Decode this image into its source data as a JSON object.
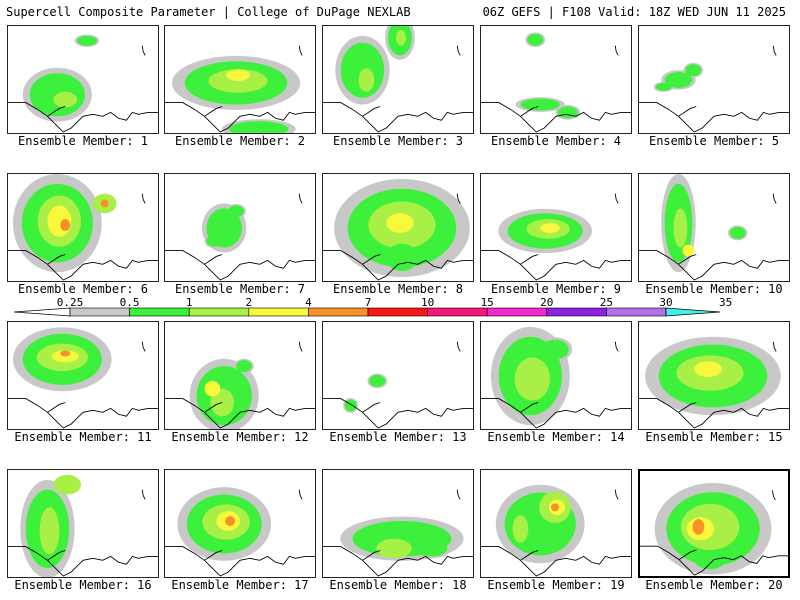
{
  "header": {
    "title": "Supercell Composite Parameter | College of DuPage NEXLAB",
    "run_info": "06Z GEFS | F108 Valid: 18Z WED JUN 11 2025"
  },
  "members": [
    {
      "label": "Ensemble Member: 1",
      "selected": false,
      "blobs": [
        [
          50,
          70,
          28,
          22,
          1
        ],
        [
          58,
          75,
          12,
          8,
          2
        ],
        [
          80,
          15,
          10,
          5,
          1
        ]
      ]
    },
    {
      "label": "Ensemble Member: 2",
      "selected": false,
      "blobs": [
        [
          72,
          58,
          52,
          22,
          1
        ],
        [
          74,
          56,
          30,
          12,
          2
        ],
        [
          74,
          50,
          12,
          6,
          3
        ],
        [
          95,
          105,
          30,
          8,
          1
        ]
      ]
    },
    {
      "label": "Ensemble Member: 3",
      "selected": false,
      "blobs": [
        [
          78,
          12,
          12,
          18,
          1
        ],
        [
          79,
          12,
          5,
          8,
          2
        ],
        [
          40,
          45,
          22,
          28,
          1
        ],
        [
          44,
          55,
          8,
          12,
          2
        ]
      ]
    },
    {
      "label": "Ensemble Member: 4",
      "selected": false,
      "blobs": [
        [
          55,
          14,
          8,
          6,
          1
        ],
        [
          60,
          80,
          20,
          6,
          1
        ],
        [
          88,
          88,
          10,
          6,
          1
        ]
      ]
    },
    {
      "label": "Ensemble Member: 5",
      "selected": false,
      "blobs": [
        [
          40,
          55,
          14,
          8,
          1
        ],
        [
          55,
          45,
          8,
          6,
          1
        ],
        [
          25,
          62,
          8,
          4,
          1
        ]
      ]
    },
    {
      "label": "Ensemble Member: 6",
      "selected": false,
      "blobs": [
        [
          50,
          50,
          36,
          40,
          1
        ],
        [
          52,
          48,
          22,
          26,
          2
        ],
        [
          52,
          48,
          12,
          16,
          3
        ],
        [
          58,
          52,
          5,
          6,
          4
        ],
        [
          98,
          30,
          12,
          10,
          2
        ],
        [
          98,
          30,
          4,
          4,
          4
        ]
      ]
    },
    {
      "label": "Ensemble Member: 7",
      "selected": false,
      "blobs": [
        [
          60,
          55,
          18,
          20,
          1
        ],
        [
          72,
          38,
          8,
          6,
          1
        ],
        [
          50,
          68,
          8,
          6,
          1
        ]
      ]
    },
    {
      "label": "Ensemble Member: 8",
      "selected": false,
      "blobs": [
        [
          80,
          55,
          55,
          40,
          1
        ],
        [
          80,
          52,
          34,
          24,
          2
        ],
        [
          78,
          50,
          14,
          10,
          3
        ],
        [
          80,
          85,
          16,
          14,
          1
        ]
      ]
    },
    {
      "label": "Ensemble Member: 9",
      "selected": false,
      "blobs": [
        [
          65,
          58,
          38,
          18,
          1
        ],
        [
          68,
          56,
          22,
          10,
          2
        ],
        [
          70,
          55,
          10,
          5,
          3
        ]
      ]
    },
    {
      "label": "Ensemble Member: 10",
      "selected": false,
      "blobs": [
        [
          40,
          50,
          14,
          40,
          1
        ],
        [
          42,
          55,
          7,
          20,
          2
        ],
        [
          50,
          78,
          6,
          6,
          3
        ],
        [
          100,
          60,
          8,
          6,
          1
        ]
      ]
    },
    {
      "label": "Ensemble Member: 11",
      "selected": false,
      "blobs": [
        [
          55,
          38,
          40,
          26,
          1
        ],
        [
          55,
          36,
          26,
          14,
          2
        ],
        [
          58,
          35,
          14,
          6,
          3
        ],
        [
          58,
          32,
          5,
          3,
          4
        ]
      ]
    },
    {
      "label": "Ensemble Member: 12",
      "selected": false,
      "blobs": [
        [
          60,
          75,
          28,
          30,
          1
        ],
        [
          58,
          82,
          12,
          14,
          2
        ],
        [
          48,
          68,
          8,
          8,
          3
        ],
        [
          80,
          45,
          8,
          6,
          1
        ]
      ]
    },
    {
      "label": "Ensemble Member: 13",
      "selected": false,
      "blobs": [
        [
          55,
          60,
          8,
          6,
          1
        ],
        [
          28,
          85,
          6,
          6,
          1
        ]
      ]
    },
    {
      "label": "Ensemble Member: 14",
      "selected": false,
      "blobs": [
        [
          50,
          55,
          32,
          40,
          1
        ],
        [
          52,
          58,
          18,
          22,
          2
        ],
        [
          75,
          28,
          14,
          10,
          1
        ]
      ]
    },
    {
      "label": "Ensemble Member: 15",
      "selected": false,
      "blobs": [
        [
          75,
          55,
          55,
          32,
          1
        ],
        [
          72,
          52,
          34,
          18,
          2
        ],
        [
          70,
          48,
          14,
          8,
          3
        ]
      ]
    },
    {
      "label": "Ensemble Member: 16",
      "selected": false,
      "blobs": [
        [
          40,
          60,
          22,
          40,
          1
        ],
        [
          42,
          62,
          10,
          24,
          2
        ],
        [
          60,
          15,
          14,
          10,
          2
        ]
      ]
    },
    {
      "label": "Ensemble Member: 17",
      "selected": false,
      "blobs": [
        [
          60,
          55,
          38,
          30,
          1
        ],
        [
          62,
          53,
          24,
          18,
          2
        ],
        [
          64,
          52,
          12,
          10,
          3
        ],
        [
          66,
          52,
          5,
          5,
          4
        ]
      ]
    },
    {
      "label": "Ensemble Member: 18",
      "selected": false,
      "blobs": [
        [
          80,
          70,
          50,
          18,
          1
        ],
        [
          72,
          80,
          18,
          10,
          2
        ],
        [
          110,
          80,
          16,
          8,
          1
        ]
      ]
    },
    {
      "label": "Ensemble Member: 19",
      "selected": false,
      "blobs": [
        [
          60,
          55,
          36,
          32,
          1
        ],
        [
          75,
          38,
          16,
          16,
          2
        ],
        [
          77,
          38,
          8,
          8,
          3
        ],
        [
          75,
          38,
          4,
          4,
          4
        ],
        [
          40,
          60,
          8,
          14,
          2
        ]
      ]
    },
    {
      "label": "Ensemble Member: 20",
      "selected": true,
      "blobs": [
        [
          75,
          60,
          48,
          38,
          1
        ],
        [
          72,
          58,
          30,
          24,
          2
        ],
        [
          62,
          60,
          14,
          12,
          3
        ],
        [
          60,
          58,
          6,
          8,
          4
        ],
        [
          72,
          92,
          16,
          10,
          1
        ]
      ]
    }
  ],
  "colorbar": {
    "ticks": [
      "0.25",
      "0.5",
      "1",
      "2",
      "4",
      "7",
      "10",
      "15",
      "20",
      "25",
      "30",
      "35"
    ],
    "colors": [
      "#ffffff",
      "#c8c8c8",
      "#3cf03c",
      "#a8f046",
      "#f8f83c",
      "#f89028",
      "#f81818",
      "#f8187a",
      "#f028d0",
      "#9020e0",
      "#b070e8",
      "#40f0f0"
    ]
  },
  "palette": {
    "0": "#c8c8c8",
    "1": "#3cf03c",
    "2": "#a8f046",
    "3": "#f8f83c",
    "4": "#f89028"
  }
}
